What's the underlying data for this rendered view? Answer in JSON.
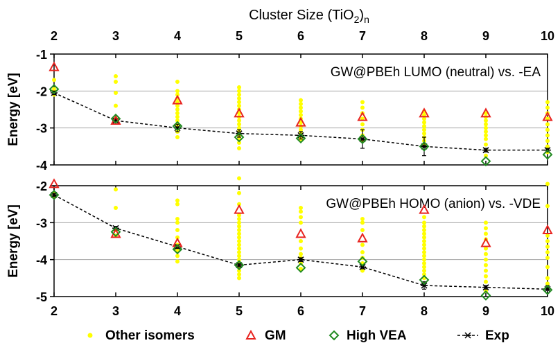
{
  "figure": {
    "top_axis_title": "Cluster Size (TiO",
    "top_axis_title_sub": "2",
    "top_axis_title_close": ")",
    "top_axis_title_n": "n",
    "legend": [
      {
        "label": "Other isomers",
        "symbol": "dot",
        "color": "#ffff00"
      },
      {
        "label": "GM",
        "symbol": "triangle",
        "color": "#e8231f"
      },
      {
        "label": "High VEA",
        "symbol": "diamond",
        "color": "#228b22"
      },
      {
        "label": "Exp",
        "symbol": "star-line",
        "color": "#000000"
      }
    ]
  },
  "chart_data": [
    {
      "type": "scatter",
      "annotation": "GW@PBEh LUMO (neutral) vs. -EA",
      "ylabel": "Energy [eV]",
      "x_categories": [
        2,
        3,
        4,
        5,
        6,
        7,
        8,
        9,
        10
      ],
      "xlim": [
        2,
        10
      ],
      "ylim": [
        -4,
        -1
      ],
      "yticks": [
        -4,
        -3,
        -2,
        -1
      ],
      "grid": true,
      "series": [
        {
          "name": "Other isomers",
          "points": [
            [
              2,
              -1.7
            ],
            [
              2,
              -1.95
            ],
            [
              2,
              -2.1
            ],
            [
              3,
              -1.6
            ],
            [
              3,
              -1.75
            ],
            [
              3,
              -2.05
            ],
            [
              3,
              -2.4
            ],
            [
              3,
              -2.75
            ],
            [
              4,
              -1.75
            ],
            [
              4,
              -2.0
            ],
            [
              4,
              -2.1
            ],
            [
              4,
              -2.2
            ],
            [
              4,
              -2.3
            ],
            [
              4,
              -2.4
            ],
            [
              4,
              -2.5
            ],
            [
              4,
              -2.6
            ],
            [
              4,
              -2.7
            ],
            [
              4,
              -2.8
            ],
            [
              4,
              -2.9
            ],
            [
              4,
              -3.0
            ],
            [
              4,
              -3.1
            ],
            [
              4,
              -3.25
            ],
            [
              5,
              -1.9
            ],
            [
              5,
              -2.0
            ],
            [
              5,
              -2.1
            ],
            [
              5,
              -2.2
            ],
            [
              5,
              -2.3
            ],
            [
              5,
              -2.4
            ],
            [
              5,
              -2.5
            ],
            [
              5,
              -2.6
            ],
            [
              5,
              -2.7
            ],
            [
              5,
              -2.8
            ],
            [
              5,
              -2.9
            ],
            [
              5,
              -3.0
            ],
            [
              5,
              -3.1
            ],
            [
              5,
              -3.2
            ],
            [
              5,
              -3.3
            ],
            [
              5,
              -3.4
            ],
            [
              5,
              -3.55
            ],
            [
              6,
              -2.25
            ],
            [
              6,
              -2.35
            ],
            [
              6,
              -2.45
            ],
            [
              6,
              -2.55
            ],
            [
              6,
              -2.65
            ],
            [
              6,
              -2.75
            ],
            [
              6,
              -2.85
            ],
            [
              6,
              -2.95
            ],
            [
              6,
              -3.05
            ],
            [
              6,
              -3.15
            ],
            [
              6,
              -3.3
            ],
            [
              7,
              -2.3
            ],
            [
              7,
              -2.45
            ],
            [
              7,
              -2.6
            ],
            [
              7,
              -2.75
            ],
            [
              7,
              -2.9
            ],
            [
              7,
              -3.05
            ],
            [
              7,
              -3.2
            ],
            [
              7,
              -3.35
            ],
            [
              8,
              -2.55
            ],
            [
              8,
              -2.65
            ],
            [
              8,
              -2.75
            ],
            [
              8,
              -2.85
            ],
            [
              8,
              -2.95
            ],
            [
              8,
              -3.05
            ],
            [
              8,
              -3.15
            ],
            [
              8,
              -3.25
            ],
            [
              8,
              -3.35
            ],
            [
              8,
              -3.45
            ],
            [
              9,
              -2.6
            ],
            [
              9,
              -2.7
            ],
            [
              9,
              -2.8
            ],
            [
              9,
              -2.9
            ],
            [
              9,
              -3.0
            ],
            [
              9,
              -3.1
            ],
            [
              9,
              -3.2
            ],
            [
              9,
              -3.3
            ],
            [
              9,
              -3.45
            ],
            [
              9,
              -3.6
            ],
            [
              9,
              -3.75
            ],
            [
              10,
              -2.3
            ],
            [
              10,
              -2.45
            ],
            [
              10,
              -2.6
            ],
            [
              10,
              -2.75
            ],
            [
              10,
              -2.9
            ],
            [
              10,
              -3.05
            ],
            [
              10,
              -3.2
            ],
            [
              10,
              -3.35
            ],
            [
              10,
              -3.5
            ],
            [
              10,
              -3.65
            ]
          ]
        },
        {
          "name": "GM",
          "x": [
            2,
            3,
            4,
            5,
            6,
            7,
            8,
            9,
            10
          ],
          "y": [
            -1.35,
            -2.8,
            -2.25,
            -2.6,
            -2.85,
            -2.7,
            -2.6,
            -2.6,
            -2.7
          ]
        },
        {
          "name": "High VEA",
          "x": [
            2,
            3,
            4,
            5,
            6,
            7,
            8,
            9,
            10
          ],
          "y": [
            -1.95,
            -2.75,
            -2.95,
            -3.25,
            -3.28,
            -3.3,
            -3.5,
            -3.9,
            -3.72
          ]
        },
        {
          "name": "Exp",
          "x": [
            2,
            3,
            4,
            5,
            6,
            7,
            8,
            9,
            10
          ],
          "y": [
            -2.05,
            -2.8,
            -3.0,
            -3.15,
            -3.2,
            -3.3,
            -3.5,
            -3.6,
            -3.6
          ],
          "err": [
            0.05,
            0.05,
            0.1,
            0.1,
            0.1,
            0.25,
            0.25,
            0.05,
            0.05
          ]
        }
      ]
    },
    {
      "type": "scatter",
      "annotation": "GW@PBEh HOMO (anion) vs. -VDE",
      "ylabel": "Energy [eV]",
      "x_categories": [
        2,
        3,
        4,
        5,
        6,
        7,
        8,
        9,
        10
      ],
      "xlim": [
        2,
        10
      ],
      "ylim": [
        -5,
        -2
      ],
      "yticks": [
        -5,
        -4,
        -3,
        -2
      ],
      "grid": true,
      "series": [
        {
          "name": "Other isomers",
          "points": [
            [
              2,
              -2.2
            ],
            [
              2,
              -2.3
            ],
            [
              3,
              -2.1
            ],
            [
              3,
              -2.6
            ],
            [
              3,
              -3.2
            ],
            [
              3,
              -3.35
            ],
            [
              4,
              -2.4
            ],
            [
              4,
              -2.5
            ],
            [
              4,
              -2.9
            ],
            [
              4,
              -3.0
            ],
            [
              4,
              -3.2
            ],
            [
              4,
              -3.4
            ],
            [
              4,
              -3.6
            ],
            [
              4,
              -3.75
            ],
            [
              4,
              -3.9
            ],
            [
              4,
              -4.05
            ],
            [
              5,
              -1.8
            ],
            [
              5,
              -2.2
            ],
            [
              5,
              -2.5
            ],
            [
              5,
              -2.8
            ],
            [
              5,
              -2.9
            ],
            [
              5,
              -3.0
            ],
            [
              5,
              -3.1
            ],
            [
              5,
              -3.2
            ],
            [
              5,
              -3.3
            ],
            [
              5,
              -3.4
            ],
            [
              5,
              -3.5
            ],
            [
              5,
              -3.6
            ],
            [
              5,
              -3.7
            ],
            [
              5,
              -3.8
            ],
            [
              5,
              -3.9
            ],
            [
              5,
              -4.0
            ],
            [
              5,
              -4.1
            ],
            [
              5,
              -4.2
            ],
            [
              5,
              -4.3
            ],
            [
              5,
              -4.4
            ],
            [
              5,
              -4.5
            ],
            [
              6,
              -2.6
            ],
            [
              6,
              -2.7
            ],
            [
              6,
              -2.85
            ],
            [
              6,
              -3.0
            ],
            [
              6,
              -3.5
            ],
            [
              6,
              -3.7
            ],
            [
              6,
              -3.85
            ],
            [
              6,
              -3.95
            ],
            [
              6,
              -4.1
            ],
            [
              6,
              -4.25
            ],
            [
              7,
              -2.9
            ],
            [
              7,
              -3.0
            ],
            [
              7,
              -3.2
            ],
            [
              7,
              -3.6
            ],
            [
              7,
              -3.8
            ],
            [
              7,
              -3.95
            ],
            [
              7,
              -4.1
            ],
            [
              7,
              -4.3
            ],
            [
              8,
              -2.85
            ],
            [
              8,
              -3.0
            ],
            [
              8,
              -3.1
            ],
            [
              8,
              -3.2
            ],
            [
              8,
              -3.3
            ],
            [
              8,
              -3.4
            ],
            [
              8,
              -3.5
            ],
            [
              8,
              -3.6
            ],
            [
              8,
              -3.7
            ],
            [
              8,
              -3.8
            ],
            [
              8,
              -3.9
            ],
            [
              8,
              -4.0
            ],
            [
              8,
              -4.1
            ],
            [
              8,
              -4.2
            ],
            [
              8,
              -4.3
            ],
            [
              8,
              -4.4
            ],
            [
              8,
              -4.5
            ],
            [
              9,
              -3.0
            ],
            [
              9,
              -3.15
            ],
            [
              9,
              -3.3
            ],
            [
              9,
              -3.45
            ],
            [
              9,
              -3.7
            ],
            [
              9,
              -3.85
            ],
            [
              9,
              -4.0
            ],
            [
              9,
              -4.15
            ],
            [
              9,
              -4.3
            ],
            [
              9,
              -4.45
            ],
            [
              9,
              -4.6
            ],
            [
              9,
              -4.85
            ],
            [
              10,
              -1.95
            ],
            [
              10,
              -2.55
            ],
            [
              10,
              -3.35
            ],
            [
              10,
              -3.5
            ],
            [
              10,
              -3.65
            ],
            [
              10,
              -3.8
            ],
            [
              10,
              -3.95
            ],
            [
              10,
              -4.2
            ],
            [
              10,
              -4.5
            ],
            [
              10,
              -4.65
            ]
          ]
        },
        {
          "name": "GM",
          "x": [
            2,
            3,
            4,
            5,
            6,
            7,
            8,
            9,
            10
          ],
          "y": [
            -1.95,
            -3.3,
            -3.55,
            -2.65,
            -3.3,
            -3.42,
            -2.65,
            -3.55,
            -3.2
          ]
        },
        {
          "name": "High VEA",
          "x": [
            2,
            3,
            4,
            5,
            6,
            7,
            8,
            9,
            10
          ],
          "y": [
            -2.25,
            -3.25,
            -3.72,
            -4.15,
            -4.22,
            -4.05,
            -4.55,
            -4.97,
            -4.82
          ]
        },
        {
          "name": "Exp",
          "x": [
            2,
            3,
            4,
            5,
            6,
            7,
            8,
            9,
            10
          ],
          "y": [
            -2.25,
            -3.15,
            -3.65,
            -4.15,
            -4.0,
            -4.2,
            -4.7,
            -4.75,
            -4.8
          ],
          "err": [
            0.05,
            0.05,
            0.05,
            0.05,
            0.05,
            0.05,
            0.1,
            0.05,
            0.1
          ]
        }
      ]
    }
  ]
}
